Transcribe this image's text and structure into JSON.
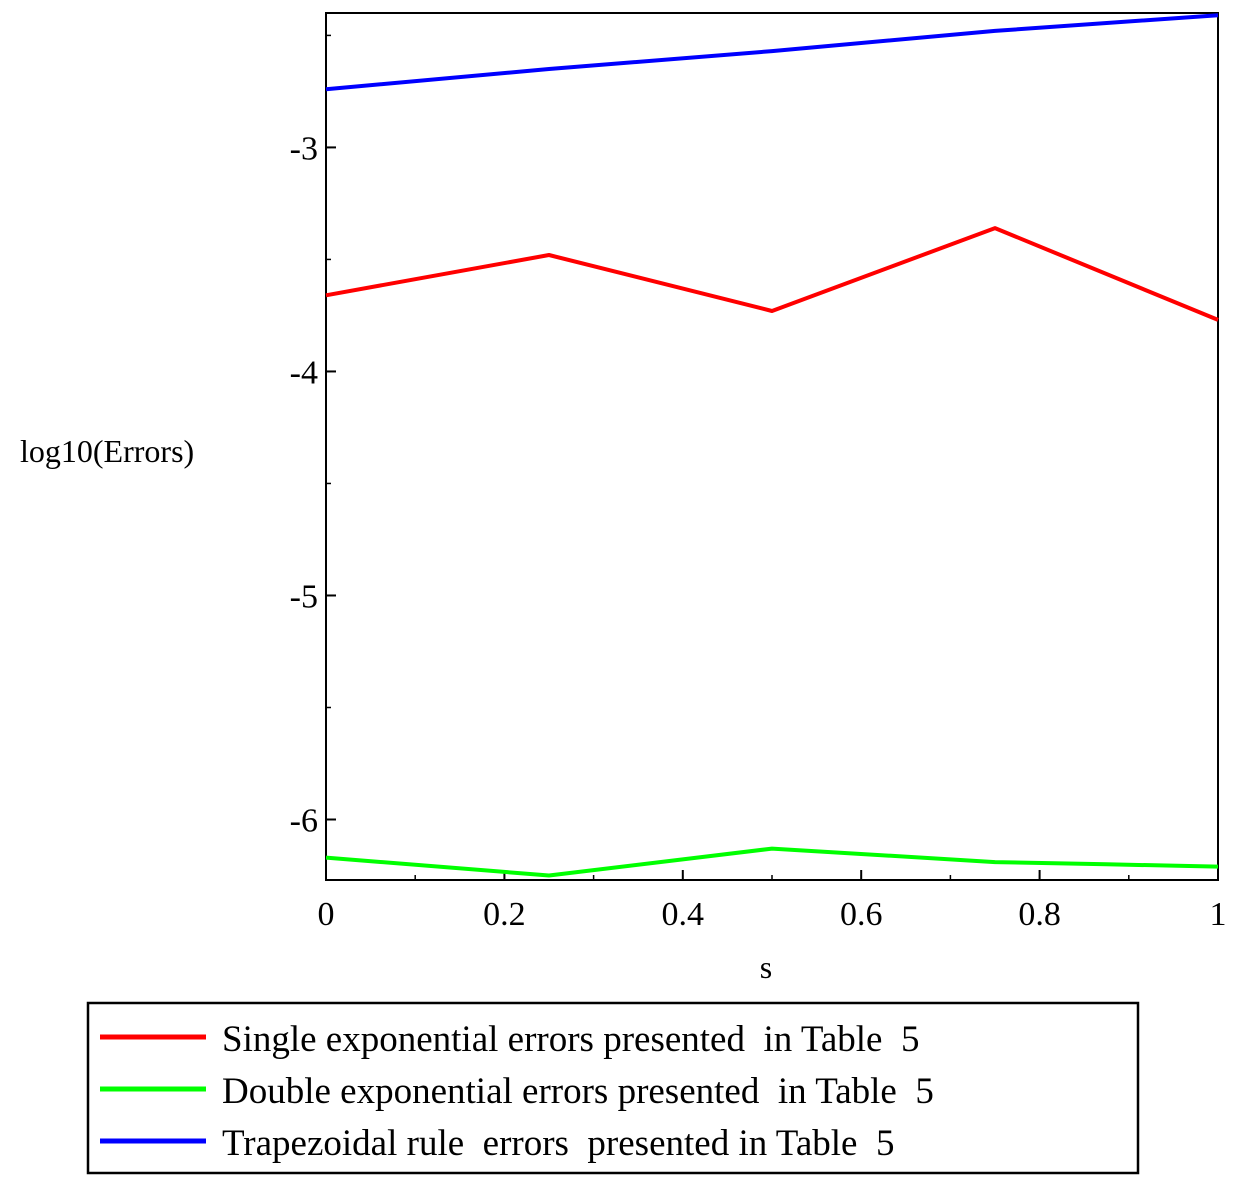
{
  "chart_data": {
    "type": "line",
    "title": "",
    "xlabel": "s",
    "ylabel": "log10(Errors)",
    "xlim": [
      0,
      1
    ],
    "ylim": [
      -6.27,
      -2.4
    ],
    "x_ticks": [
      0,
      0.2,
      0.4,
      0.6,
      0.8,
      1
    ],
    "x_tick_labels": [
      "0",
      "0.2",
      "0.4",
      "0.6",
      "0.8",
      "1"
    ],
    "x_minor_step": 0.1,
    "y_ticks": [
      -3,
      -4,
      -5,
      -6
    ],
    "y_tick_labels": [
      "-3",
      "-4",
      "-5",
      "-6"
    ],
    "y_minor_step": 0.5,
    "grid": false,
    "legend_position": "bottom",
    "series": [
      {
        "name": "Single exponential errors presented  in Table  5",
        "color": "#ff0000",
        "x": [
          0,
          0.25,
          0.5,
          0.75,
          1
        ],
        "y": [
          -3.66,
          -3.48,
          -3.73,
          -3.36,
          -3.77
        ]
      },
      {
        "name": "Double exponential errors presented  in Table  5",
        "color": "#00ff00",
        "x": [
          0,
          0.25,
          0.5,
          0.75,
          0.875,
          1
        ],
        "y": [
          -6.17,
          -6.25,
          -6.13,
          -6.19,
          -6.2,
          -6.21
        ]
      },
      {
        "name": "Trapezoidal rule  errors  presented in Table  5",
        "color": "#0000ff",
        "x": [
          0,
          0.25,
          0.5,
          0.75,
          1
        ],
        "y": [
          -2.74,
          -2.65,
          -2.57,
          -2.48,
          -2.41
        ]
      }
    ]
  }
}
